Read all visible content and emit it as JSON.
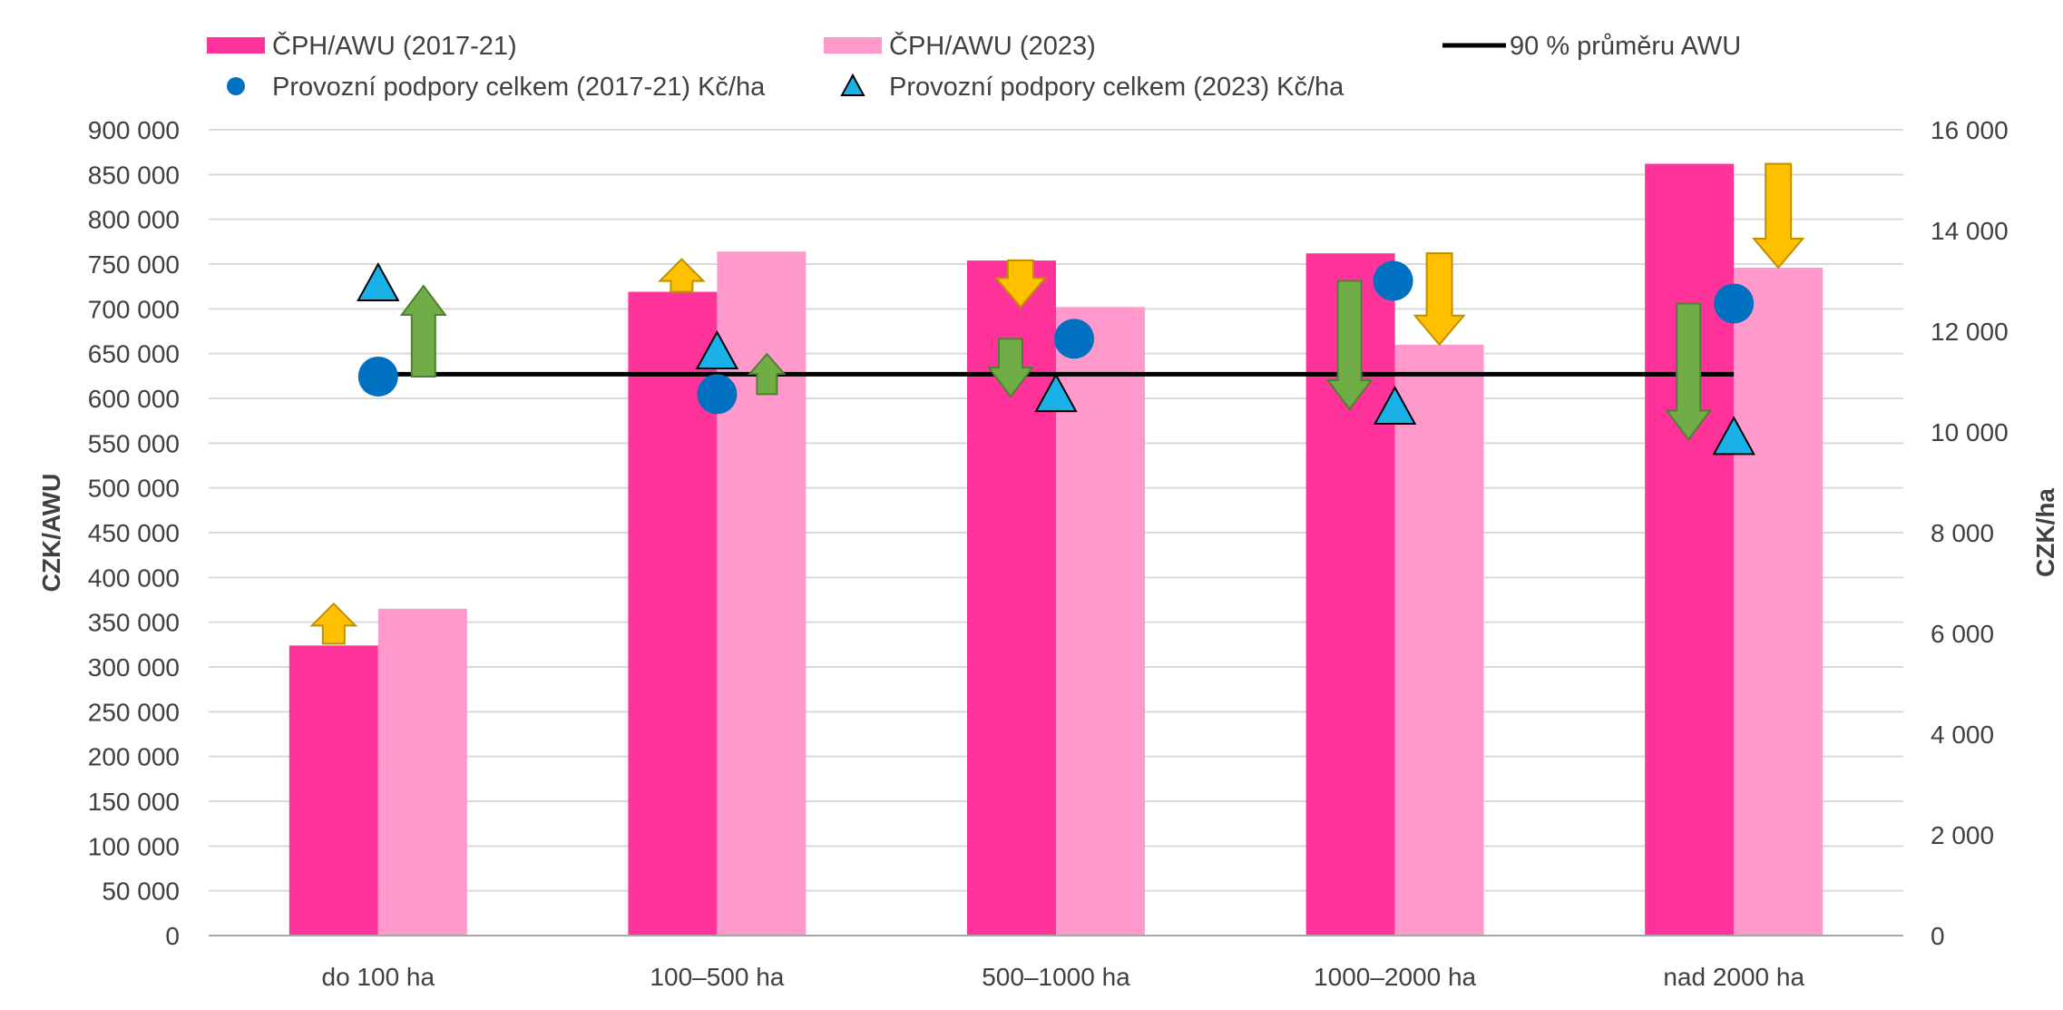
{
  "chart_data": {
    "type": "bar",
    "categories": [
      "do 100 ha",
      "100–500 ha",
      "500–1000 ha",
      "1000–2000 ha",
      "nad 2000 ha"
    ],
    "series": [
      {
        "name": "ČPH/AWU (2017-21)",
        "kind": "bar",
        "axis": "left",
        "color": "#FF3399",
        "values": [
          324000,
          719000,
          754000,
          762000,
          862000
        ]
      },
      {
        "name": "ČPH/AWU (2023)",
        "kind": "bar",
        "axis": "left",
        "color": "#FF99CC",
        "values": [
          365000,
          764000,
          702000,
          660000,
          746000
        ]
      },
      {
        "name": "90 % průměru AWU",
        "kind": "line",
        "axis": "left",
        "color": "#000000",
        "values": [
          627000,
          627000,
          627000,
          627000,
          627000
        ]
      },
      {
        "name": "Provozní podpory celkem (2017-21) Kč/ha",
        "kind": "circle",
        "axis": "right",
        "color": "#0070C0",
        "values": [
          11100,
          10750,
          11850,
          13000,
          12550
        ]
      },
      {
        "name": "Provozní podpory celkem (2023) Kč/ha",
        "kind": "triangle",
        "axis": "right",
        "color": "#1AB0E8",
        "values": [
          12900,
          11550,
          10700,
          10450,
          9850
        ]
      }
    ],
    "arrows": {
      "gva_change": {
        "color": "#FFC000",
        "direction": [
          "up",
          "up",
          "down",
          "down",
          "down"
        ]
      },
      "subsidy_change": {
        "color": "#70AD47",
        "direction": [
          "up",
          "up",
          "down",
          "down",
          "down"
        ]
      }
    },
    "ylabel": "CZK/AWU",
    "ylabel_right": "CZK/ha",
    "ylim": [
      0,
      900000
    ],
    "ylim_right": [
      0,
      16000
    ],
    "yticks": [
      "0",
      "50 000",
      "100 000",
      "150 000",
      "200 000",
      "250 000",
      "300 000",
      "350 000",
      "400 000",
      "450 000",
      "500 000",
      "550 000",
      "600 000",
      "650 000",
      "700 000",
      "750 000",
      "800 000",
      "850 000",
      "900 000"
    ],
    "yticks_right": [
      "0",
      "2 000",
      "4 000",
      "6 000",
      "8 000",
      "10 000",
      "12 000",
      "14 000",
      "16 000"
    ],
    "grid": true,
    "legend_position": "top"
  }
}
